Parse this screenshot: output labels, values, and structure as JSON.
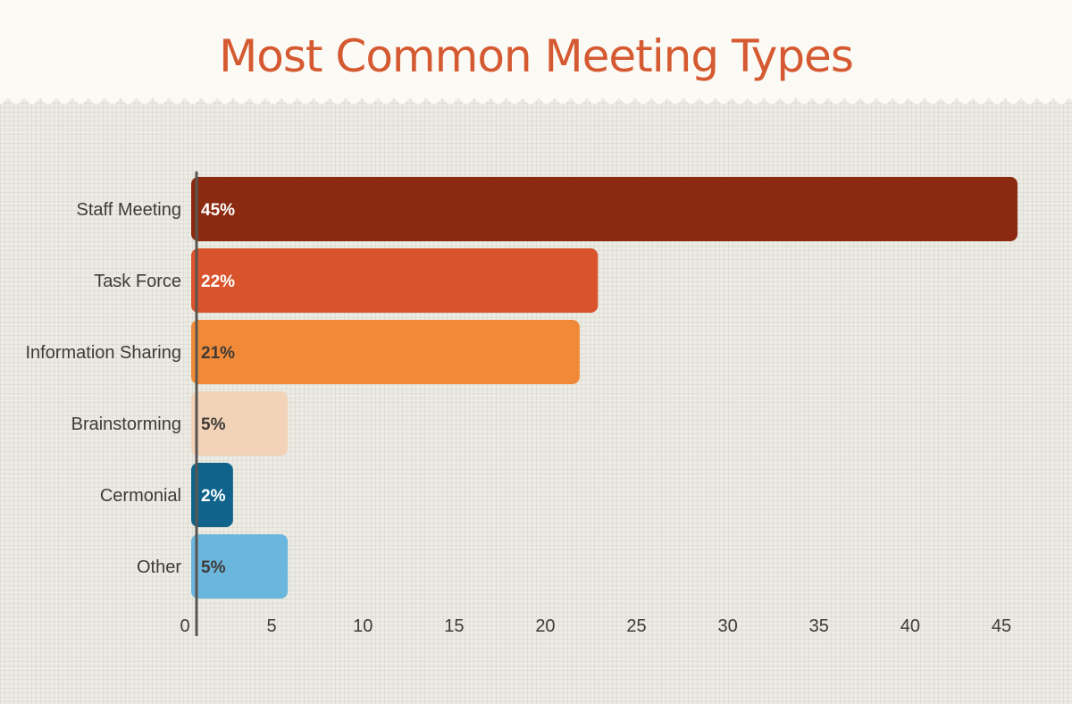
{
  "title": "Most Common Meeting Types",
  "chart_data": {
    "type": "bar",
    "orientation": "horizontal",
    "title": "Most Common Meeting Types",
    "categories": [
      "Staff Meeting",
      "Task Force",
      "Information Sharing",
      "Brainstorming",
      "Cermonial",
      "Other"
    ],
    "values": [
      45,
      22,
      21,
      5,
      2,
      5
    ],
    "data_labels": [
      "45%",
      "22%",
      "21%",
      "5%",
      "2%",
      "5%"
    ],
    "colors": [
      "#8b2a10",
      "#d9532b",
      "#f08a38",
      "#f2d3b8",
      "#10648c",
      "#6bb6dd"
    ],
    "label_colors": [
      "#ffffff",
      "#ffffff",
      "#3f3a36",
      "#3f3a36",
      "#ffffff",
      "#3f3a36"
    ],
    "xlim": [
      0,
      45
    ],
    "xticks": [
      0,
      5,
      10,
      15,
      20,
      25,
      30,
      35,
      40,
      45
    ],
    "xlabel": "",
    "ylabel": "",
    "grid": true,
    "legend": "none"
  }
}
